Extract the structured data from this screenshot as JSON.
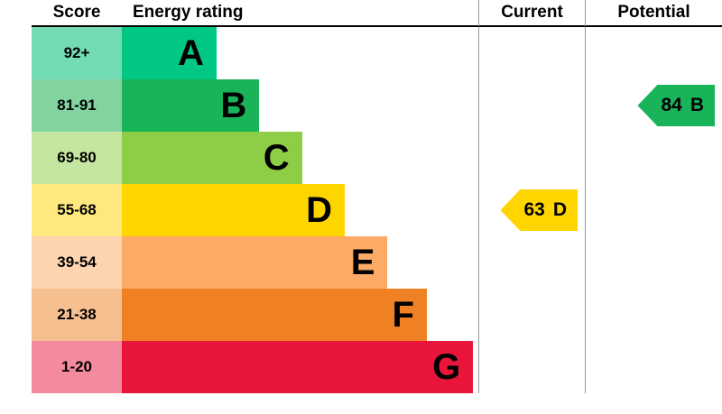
{
  "header": {
    "score": "Score",
    "energy_rating": "Energy rating",
    "current": "Current",
    "potential": "Potential"
  },
  "bands": [
    {
      "letter": "A",
      "score": "92+",
      "color": "#00c781",
      "tint": "#73dcb5",
      "width_pct": 23
    },
    {
      "letter": "B",
      "score": "81-91",
      "color": "#19b459",
      "tint": "#82d3a0",
      "width_pct": 35
    },
    {
      "letter": "C",
      "score": "69-80",
      "color": "#8dce46",
      "tint": "#c5e6a0",
      "width_pct": 47
    },
    {
      "letter": "D",
      "score": "55-68",
      "color": "#ffd500",
      "tint": "#ffe97f",
      "width_pct": 59
    },
    {
      "letter": "E",
      "score": "39-54",
      "color": "#fcaa65",
      "tint": "#fdd3b0",
      "width_pct": 71
    },
    {
      "letter": "F",
      "score": "21-38",
      "color": "#ef8023",
      "tint": "#f6bf8f",
      "width_pct": 82
    },
    {
      "letter": "G",
      "score": "1-20",
      "color": "#e9153b",
      "tint": "#f38a9d",
      "width_pct": 95
    }
  ],
  "current": {
    "value": "63",
    "band": "D",
    "color": "#ffd500"
  },
  "potential": {
    "value": "84",
    "band": "B",
    "color": "#19b459"
  },
  "chart_data": {
    "type": "bar",
    "title": "Energy rating",
    "orientation": "horizontal",
    "categories": [
      "A",
      "B",
      "C",
      "D",
      "E",
      "F",
      "G"
    ],
    "score_ranges": [
      "92+",
      "81-91",
      "69-80",
      "55-68",
      "39-54",
      "21-38",
      "1-20"
    ],
    "bar_colors": [
      "#00c781",
      "#19b459",
      "#8dce46",
      "#ffd500",
      "#fcaa65",
      "#ef8023",
      "#e9153b"
    ],
    "bar_relative_widths_pct": [
      23,
      35,
      47,
      59,
      71,
      82,
      95
    ],
    "markers": [
      {
        "name": "Current",
        "value": 63,
        "band": "D",
        "color": "#ffd500"
      },
      {
        "name": "Potential",
        "value": 84,
        "band": "B",
        "color": "#19b459"
      }
    ],
    "legend_position": "none",
    "grid": false
  }
}
